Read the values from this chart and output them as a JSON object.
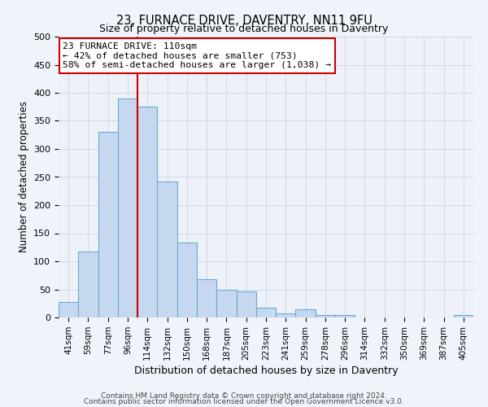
{
  "title": "23, FURNACE DRIVE, DAVENTRY, NN11 9FU",
  "subtitle": "Size of property relative to detached houses in Daventry",
  "xlabel": "Distribution of detached houses by size in Daventry",
  "ylabel": "Number of detached properties",
  "bar_labels": [
    "41sqm",
    "59sqm",
    "77sqm",
    "96sqm",
    "114sqm",
    "132sqm",
    "150sqm",
    "168sqm",
    "187sqm",
    "205sqm",
    "223sqm",
    "241sqm",
    "259sqm",
    "278sqm",
    "296sqm",
    "314sqm",
    "332sqm",
    "350sqm",
    "369sqm",
    "387sqm",
    "405sqm"
  ],
  "bar_values": [
    28,
    118,
    330,
    390,
    375,
    242,
    133,
    68,
    50,
    46,
    18,
    7,
    14,
    5,
    5,
    0,
    0,
    0,
    0,
    0,
    5
  ],
  "bar_color": "#c5d8f0",
  "bar_edge_color": "#6aaad4",
  "vline_x_index": 4,
  "vline_color": "#cc0000",
  "ylim": [
    0,
    500
  ],
  "yticks": [
    0,
    50,
    100,
    150,
    200,
    250,
    300,
    350,
    400,
    450,
    500
  ],
  "annotation_line1": "23 FURNACE DRIVE: 110sqm",
  "annotation_line2": "← 42% of detached houses are smaller (753)",
  "annotation_line3": "58% of semi-detached houses are larger (1,038) →",
  "annotation_box_color": "#ffffff",
  "annotation_box_edge": "#cc0000",
  "footer_line1": "Contains HM Land Registry data © Crown copyright and database right 2024.",
  "footer_line2": "Contains public sector information licensed under the Open Government Licence v3.0.",
  "bg_color": "#f0f4fa",
  "plot_bg_color": "#eef2f8",
  "grid_color": "#c8d4e8"
}
